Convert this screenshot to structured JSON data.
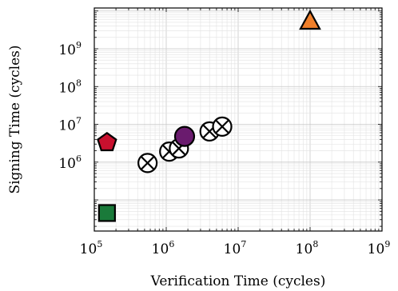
{
  "chart_data": {
    "type": "scatter",
    "title": "",
    "xlabel": "Verification Time (cycles)",
    "ylabel": "Signing Time (cycles)",
    "x_scale": "log",
    "y_scale": "log",
    "xlim": [
      100000,
      1000000000
    ],
    "ylim": [
      15000,
      12000000000
    ],
    "x_ticks": [
      {
        "base": "10",
        "exp": "5",
        "value": 100000
      },
      {
        "base": "10",
        "exp": "6",
        "value": 1000000
      },
      {
        "base": "10",
        "exp": "7",
        "value": 10000000
      },
      {
        "base": "10",
        "exp": "8",
        "value": 100000000
      },
      {
        "base": "10",
        "exp": "9",
        "value": 1000000000
      }
    ],
    "y_ticks": [
      {
        "base": "10",
        "exp": "6",
        "value": 1000000
      },
      {
        "base": "10",
        "exp": "7",
        "value": 10000000
      },
      {
        "base": "10",
        "exp": "8",
        "value": 100000000
      },
      {
        "base": "10",
        "exp": "9",
        "value": 1000000000
      }
    ],
    "grid": true,
    "legend": "none",
    "series": [
      {
        "marker": "pentagon",
        "color": "#c8102e",
        "points": [
          {
            "x": 150000,
            "y": 3300000
          }
        ]
      },
      {
        "marker": "square",
        "color": "#1a7a3a",
        "points": [
          {
            "x": 150000,
            "y": 45000
          }
        ]
      },
      {
        "marker": "otimes",
        "color": "#ffffff",
        "points": [
          {
            "x": 550000,
            "y": 950000
          },
          {
            "x": 1100000,
            "y": 1900000
          },
          {
            "x": 1500000,
            "y": 2300000
          },
          {
            "x": 4000000,
            "y": 6500000
          },
          {
            "x": 6000000,
            "y": 8700000
          }
        ]
      },
      {
        "marker": "circle",
        "color": "#6a1b6e",
        "points": [
          {
            "x": 1800000,
            "y": 4800000
          }
        ]
      },
      {
        "marker": "triangle",
        "color": "#f07f2a",
        "points": [
          {
            "x": 100000000,
            "y": 5500000000
          }
        ]
      }
    ]
  }
}
